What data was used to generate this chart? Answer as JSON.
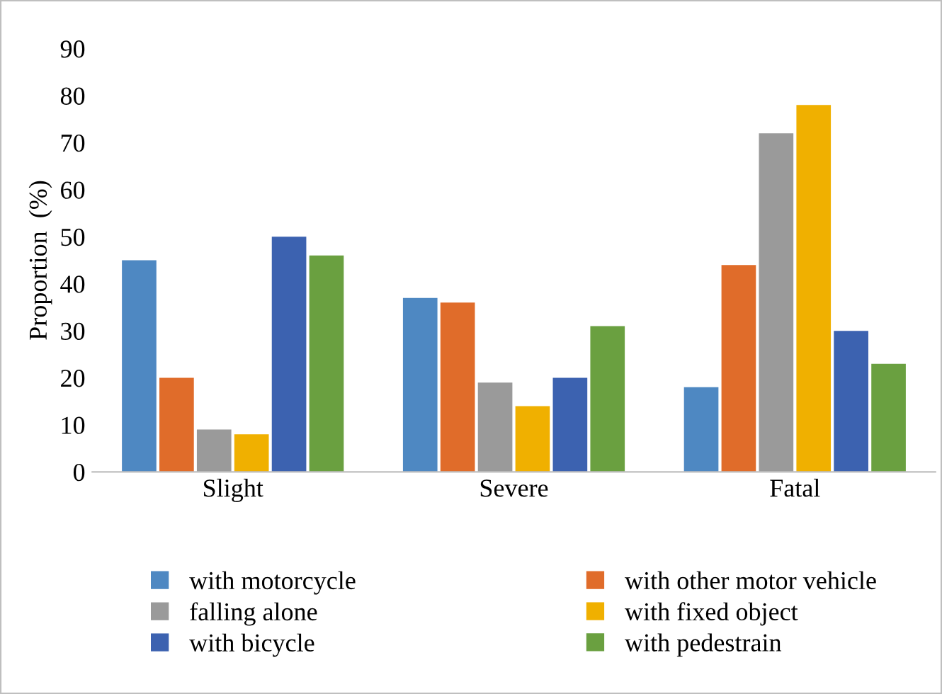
{
  "chart_data": {
    "type": "bar",
    "ylabel": "Proportion  (%)",
    "categories": [
      "Slight",
      "Severe",
      "Fatal"
    ],
    "series": [
      {
        "name": "with motorcycle",
        "color": "#4e88c2",
        "values": [
          45,
          37,
          18
        ]
      },
      {
        "name": "with other motor vehicle",
        "color": "#e06c2a",
        "values": [
          20,
          36,
          44
        ]
      },
      {
        "name": "falling alone",
        "color": "#9a9a9a",
        "values": [
          9,
          19,
          72
        ]
      },
      {
        "name": "with fixed object",
        "color": "#f0b000",
        "values": [
          8,
          14,
          78
        ]
      },
      {
        "name": "with bicycle",
        "color": "#3c62b0",
        "values": [
          50,
          20,
          30
        ]
      },
      {
        "name": "with pedestrain",
        "color": "#6aa040",
        "values": [
          46,
          31,
          23
        ]
      }
    ],
    "ylim": [
      0,
      90
    ],
    "yticks": [
      0,
      10,
      20,
      30,
      40,
      50,
      60,
      70,
      80,
      90
    ],
    "grid": false,
    "legend": "bottom"
  }
}
